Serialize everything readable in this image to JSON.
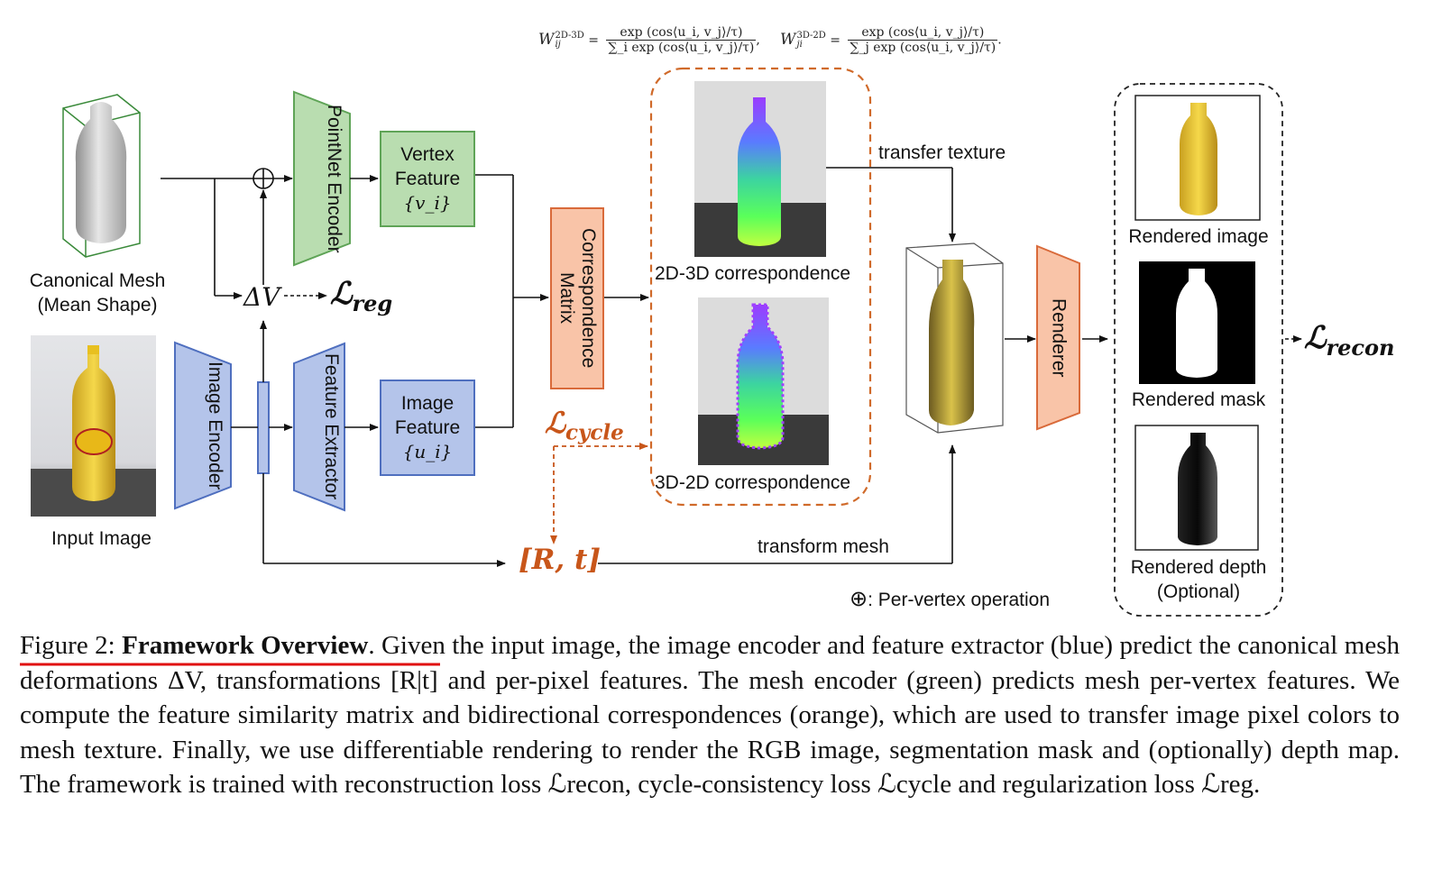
{
  "formulas": {
    "w2d3d_lhs": "W",
    "w2d3d_sup": "2D-3D",
    "w2d3d_sub": "ij",
    "w2d3d_num": "exp (cos⟨u_i, v_j⟩/τ)",
    "w2d3d_den": "∑_i exp (cos⟨u_i, v_j⟩/τ)",
    "w3d2d_lhs": "W",
    "w3d2d_sup": "3D-2D",
    "w3d2d_sub": "ji",
    "w3d2d_num": "exp (cos⟨u_i, v_j⟩/τ)",
    "w3d2d_den": "∑_j exp (cos⟨u_i, v_j⟩/τ)"
  },
  "inputs": {
    "canonical_mesh_line1": "Canonical Mesh",
    "canonical_mesh_line2": "(Mean Shape)",
    "input_image": "Input Image"
  },
  "blocks": {
    "pointnet_encoder": "PointNet Encoder",
    "vertex_feature_line1": "Vertex",
    "vertex_feature_line2": "Feature",
    "vertex_feature_line3": "{v_i}",
    "image_encoder": "Image Encoder",
    "feature_extractor": "Feature Extractor",
    "image_feature_line1": "Image",
    "image_feature_line2": "Feature",
    "image_feature_line3": "{u_i}",
    "correspondence_matrix": "Correspondence Matrix",
    "renderer": "Renderer"
  },
  "labels": {
    "delta_v": "ΔV",
    "loss_reg": "ℒ",
    "loss_reg_sub": "reg",
    "loss_cycle": "ℒ",
    "loss_cycle_sub": "cycle",
    "loss_recon": "ℒ",
    "loss_recon_sub": "recon",
    "rt": "[R, t]",
    "corr_2d3d": "2D-3D correspondence",
    "corr_3d2d": "3D-2D correspondence",
    "transfer_texture": "transfer texture",
    "transform_mesh": "transform mesh",
    "rendered_image": "Rendered image",
    "rendered_mask": "Rendered mask",
    "rendered_depth_line1": "Rendered depth",
    "rendered_depth_line2": "(Optional)",
    "per_vertex_symbol": "⊕",
    "per_vertex_text": ": Per-vertex operation"
  },
  "caption": {
    "figure_label": "Figure 2: ",
    "title": "Framework Overview",
    "text": ". Given the input image, the image encoder and feature extractor (blue) predict the canonical mesh deformations ΔV, transformations [R|t] and per-pixel features. The mesh encoder (green) predicts mesh per-vertex features. We compute the feature similarity matrix and bidirectional correspondences (orange), which are used to transfer image pixel colors to mesh texture. Finally, we use differentiable rendering to render the RGB image, segmentation mask and (optionally) depth map. The framework is trained with reconstruction loss ℒrecon, cycle-consistency loss ℒcycle and regularization loss ℒreg."
  },
  "colors": {
    "green_fill": "#b9ddb0",
    "blue_fill": "#b4c4ea",
    "orange_fill": "#f9c4a8",
    "orange_accent": "#c8561a",
    "underline_red": "#e01010"
  }
}
